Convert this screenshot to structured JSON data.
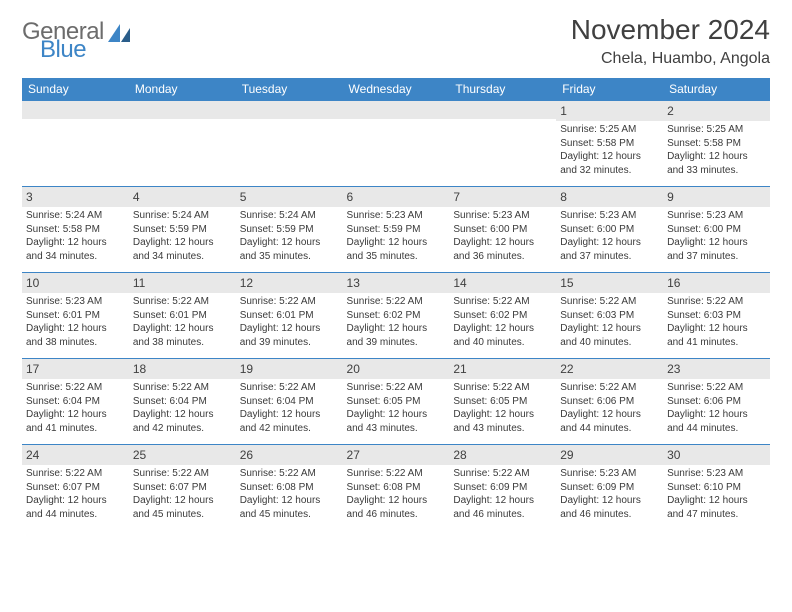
{
  "logo": {
    "word1": "General",
    "word2": "Blue"
  },
  "title": "November 2024",
  "subtitle": "Chela, Huambo, Angola",
  "colors": {
    "header_bg": "#3d85c6",
    "header_text": "#ffffff",
    "daynum_bg": "#e8e8e8",
    "border": "#3d85c6",
    "text": "#3a3a3a",
    "title": "#404040",
    "logo_gray": "#6c6c6c",
    "logo_blue": "#3d85c6"
  },
  "day_names": [
    "Sunday",
    "Monday",
    "Tuesday",
    "Wednesday",
    "Thursday",
    "Friday",
    "Saturday"
  ],
  "weeks": [
    [
      null,
      null,
      null,
      null,
      null,
      {
        "n": "1",
        "sr": "5:25 AM",
        "ss": "5:58 PM",
        "dl": "12 hours and 32 minutes."
      },
      {
        "n": "2",
        "sr": "5:25 AM",
        "ss": "5:58 PM",
        "dl": "12 hours and 33 minutes."
      }
    ],
    [
      {
        "n": "3",
        "sr": "5:24 AM",
        "ss": "5:58 PM",
        "dl": "12 hours and 34 minutes."
      },
      {
        "n": "4",
        "sr": "5:24 AM",
        "ss": "5:59 PM",
        "dl": "12 hours and 34 minutes."
      },
      {
        "n": "5",
        "sr": "5:24 AM",
        "ss": "5:59 PM",
        "dl": "12 hours and 35 minutes."
      },
      {
        "n": "6",
        "sr": "5:23 AM",
        "ss": "5:59 PM",
        "dl": "12 hours and 35 minutes."
      },
      {
        "n": "7",
        "sr": "5:23 AM",
        "ss": "6:00 PM",
        "dl": "12 hours and 36 minutes."
      },
      {
        "n": "8",
        "sr": "5:23 AM",
        "ss": "6:00 PM",
        "dl": "12 hours and 37 minutes."
      },
      {
        "n": "9",
        "sr": "5:23 AM",
        "ss": "6:00 PM",
        "dl": "12 hours and 37 minutes."
      }
    ],
    [
      {
        "n": "10",
        "sr": "5:23 AM",
        "ss": "6:01 PM",
        "dl": "12 hours and 38 minutes."
      },
      {
        "n": "11",
        "sr": "5:22 AM",
        "ss": "6:01 PM",
        "dl": "12 hours and 38 minutes."
      },
      {
        "n": "12",
        "sr": "5:22 AM",
        "ss": "6:01 PM",
        "dl": "12 hours and 39 minutes."
      },
      {
        "n": "13",
        "sr": "5:22 AM",
        "ss": "6:02 PM",
        "dl": "12 hours and 39 minutes."
      },
      {
        "n": "14",
        "sr": "5:22 AM",
        "ss": "6:02 PM",
        "dl": "12 hours and 40 minutes."
      },
      {
        "n": "15",
        "sr": "5:22 AM",
        "ss": "6:03 PM",
        "dl": "12 hours and 40 minutes."
      },
      {
        "n": "16",
        "sr": "5:22 AM",
        "ss": "6:03 PM",
        "dl": "12 hours and 41 minutes."
      }
    ],
    [
      {
        "n": "17",
        "sr": "5:22 AM",
        "ss": "6:04 PM",
        "dl": "12 hours and 41 minutes."
      },
      {
        "n": "18",
        "sr": "5:22 AM",
        "ss": "6:04 PM",
        "dl": "12 hours and 42 minutes."
      },
      {
        "n": "19",
        "sr": "5:22 AM",
        "ss": "6:04 PM",
        "dl": "12 hours and 42 minutes."
      },
      {
        "n": "20",
        "sr": "5:22 AM",
        "ss": "6:05 PM",
        "dl": "12 hours and 43 minutes."
      },
      {
        "n": "21",
        "sr": "5:22 AM",
        "ss": "6:05 PM",
        "dl": "12 hours and 43 minutes."
      },
      {
        "n": "22",
        "sr": "5:22 AM",
        "ss": "6:06 PM",
        "dl": "12 hours and 44 minutes."
      },
      {
        "n": "23",
        "sr": "5:22 AM",
        "ss": "6:06 PM",
        "dl": "12 hours and 44 minutes."
      }
    ],
    [
      {
        "n": "24",
        "sr": "5:22 AM",
        "ss": "6:07 PM",
        "dl": "12 hours and 44 minutes."
      },
      {
        "n": "25",
        "sr": "5:22 AM",
        "ss": "6:07 PM",
        "dl": "12 hours and 45 minutes."
      },
      {
        "n": "26",
        "sr": "5:22 AM",
        "ss": "6:08 PM",
        "dl": "12 hours and 45 minutes."
      },
      {
        "n": "27",
        "sr": "5:22 AM",
        "ss": "6:08 PM",
        "dl": "12 hours and 46 minutes."
      },
      {
        "n": "28",
        "sr": "5:22 AM",
        "ss": "6:09 PM",
        "dl": "12 hours and 46 minutes."
      },
      {
        "n": "29",
        "sr": "5:23 AM",
        "ss": "6:09 PM",
        "dl": "12 hours and 46 minutes."
      },
      {
        "n": "30",
        "sr": "5:23 AM",
        "ss": "6:10 PM",
        "dl": "12 hours and 47 minutes."
      }
    ]
  ],
  "labels": {
    "sunrise": "Sunrise: ",
    "sunset": "Sunset: ",
    "daylight": "Daylight: "
  }
}
